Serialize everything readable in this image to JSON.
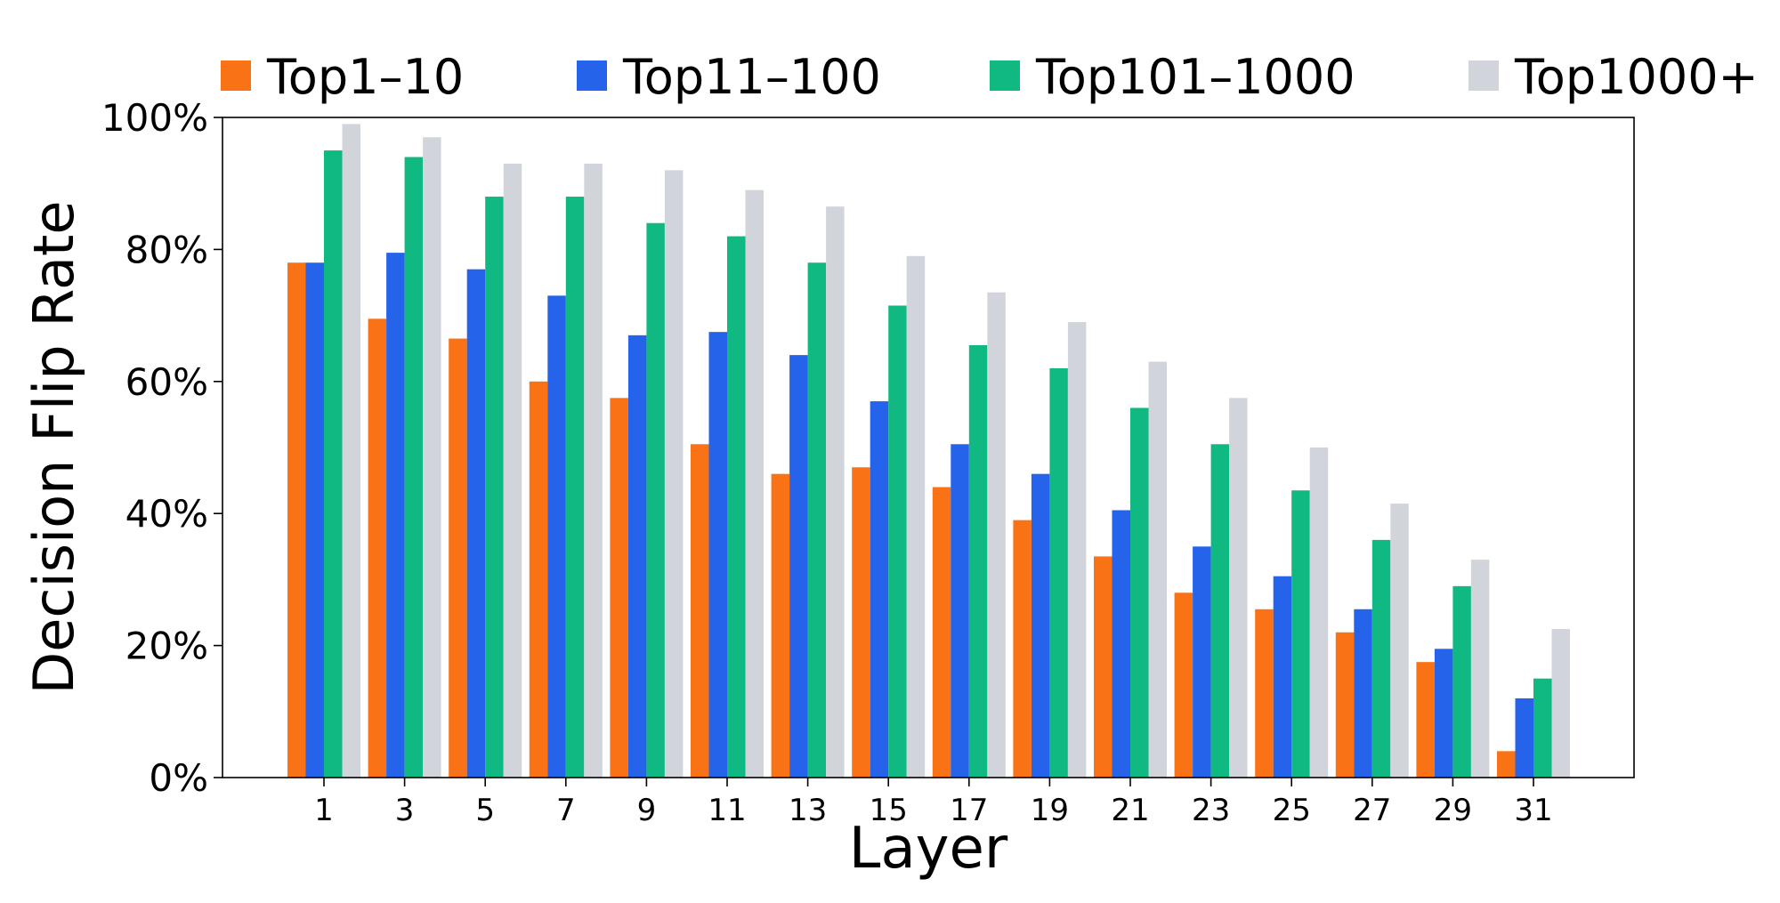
{
  "chart_data": {
    "type": "bar",
    "title": "",
    "xlabel": "Layer",
    "ylabel": "Decision Flip Rate",
    "categories": [
      "1",
      "3",
      "5",
      "7",
      "9",
      "11",
      "13",
      "15",
      "17",
      "19",
      "21",
      "23",
      "25",
      "27",
      "29",
      "31"
    ],
    "ylim": [
      0,
      100
    ],
    "yticks": [
      0,
      20,
      40,
      60,
      80,
      100
    ],
    "ytick_labels": [
      "0%",
      "20%",
      "40%",
      "60%",
      "80%",
      "100%"
    ],
    "grid": false,
    "legend_position": "top",
    "series": [
      {
        "name": "Top1–10",
        "color": "#f97316",
        "values": [
          78,
          69.5,
          66.5,
          60,
          57.5,
          50.5,
          46,
          47,
          44,
          39,
          33.5,
          28,
          25.5,
          22,
          17.5,
          4
        ]
      },
      {
        "name": "Top11–100",
        "color": "#2563eb",
        "values": [
          78,
          79.5,
          77,
          73,
          67,
          67.5,
          64,
          57,
          50.5,
          46,
          40.5,
          35,
          30.5,
          25.5,
          19.5,
          12
        ]
      },
      {
        "name": "Top101–1000",
        "color": "#10b981",
        "values": [
          95,
          94,
          88,
          88,
          84,
          82,
          78,
          71.5,
          65.5,
          62,
          56,
          50.5,
          43.5,
          36,
          29,
          15
        ]
      },
      {
        "name": "Top1000+",
        "color": "#d1d5db",
        "values": [
          99,
          97,
          93,
          93,
          92,
          89,
          86.5,
          79,
          73.5,
          69,
          63,
          57.5,
          50,
          41.5,
          33,
          22.5
        ]
      }
    ]
  }
}
